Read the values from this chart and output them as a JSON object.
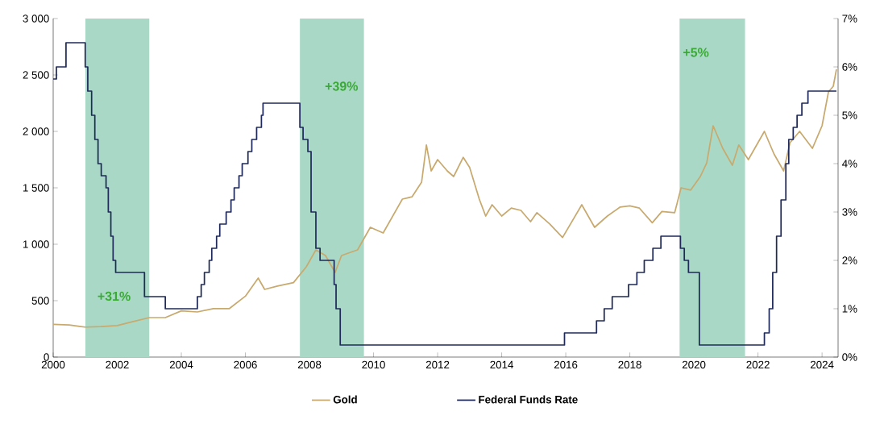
{
  "chart_data": {
    "type": "line",
    "xlim": [
      2000,
      2024.5
    ],
    "xticks": [
      2000,
      2002,
      2004,
      2006,
      2008,
      2010,
      2012,
      2014,
      2016,
      2018,
      2020,
      2022,
      2024
    ],
    "ylim": [
      0,
      3000
    ],
    "yticks": [
      0,
      500,
      {
        "value": 1000,
        "label": "1 000"
      },
      {
        "value": 1500,
        "label": "1 500"
      },
      {
        "value": 2000,
        "label": "2 000"
      },
      {
        "value": 2500,
        "label": "2 500"
      },
      {
        "value": 3000,
        "label": "3 000"
      }
    ],
    "y2lim": [
      0,
      7
    ],
    "y2ticks": [
      {
        "value": 0,
        "label": "0%"
      },
      {
        "value": 1,
        "label": "1%"
      },
      {
        "value": 2,
        "label": "2%"
      },
      {
        "value": 3,
        "label": "3%"
      },
      {
        "value": 4,
        "label": "4%"
      },
      {
        "value": 5,
        "label": "5%"
      },
      {
        "value": 6,
        "label": "6%"
      },
      {
        "value": 7,
        "label": "7%"
      }
    ],
    "legend": "bottom",
    "bands": [
      {
        "axis": "x",
        "from": 2001.0,
        "to": 2003.0,
        "color": "#a9d9c6"
      },
      {
        "axis": "x",
        "from": 2007.7,
        "to": 2009.7,
        "color": "#a9d9c6"
      },
      {
        "axis": "x",
        "from": 2019.55,
        "to": 2021.6,
        "color": "#a9d9c6"
      }
    ],
    "annotations": [
      "+31%",
      "+39%",
      "+5%"
    ],
    "series": [
      {
        "name": "Gold",
        "color": "#c8a96e",
        "x": [
          2000,
          2000.5,
          2001,
          2001.5,
          2002,
          2002.5,
          2003,
          2003.5,
          2004,
          2004.5,
          2005,
          2005.5,
          2006,
          2006.4,
          2006.6,
          2007,
          2007.5,
          2007.9,
          2008.2,
          2008.5,
          2008.8,
          2009,
          2009.5,
          2009.9,
          2010.3,
          2010.6,
          2010.9,
          2011.2,
          2011.5,
          2011.65,
          2011.8,
          2012.0,
          2012.3,
          2012.5,
          2012.8,
          2013.0,
          2013.3,
          2013.5,
          2013.7,
          2014,
          2014.3,
          2014.6,
          2014.9,
          2015.1,
          2015.5,
          2015.9,
          2016.5,
          2016.9,
          2017.3,
          2017.7,
          2018.0,
          2018.3,
          2018.7,
          2019.0,
          2019.4,
          2019.6,
          2019.9,
          2020.2,
          2020.4,
          2020.6,
          2020.9,
          2021.2,
          2021.4,
          2021.7,
          2022.2,
          2022.5,
          2022.8,
          2023.0,
          2023.3,
          2023.7,
          2024.0,
          2024.2,
          2024.35,
          2024.45
        ],
        "values": [
          290,
          285,
          265,
          270,
          280,
          315,
          350,
          350,
          410,
          400,
          430,
          430,
          540,
          700,
          600,
          630,
          660,
          800,
          950,
          900,
          750,
          900,
          950,
          1150,
          1100,
          1250,
          1400,
          1420,
          1550,
          1880,
          1650,
          1750,
          1650,
          1600,
          1770,
          1680,
          1400,
          1250,
          1350,
          1250,
          1320,
          1300,
          1200,
          1280,
          1180,
          1060,
          1350,
          1150,
          1250,
          1330,
          1340,
          1320,
          1190,
          1290,
          1280,
          1500,
          1480,
          1600,
          1720,
          2050,
          1850,
          1700,
          1880,
          1750,
          2000,
          1800,
          1650,
          1900,
          2000,
          1850,
          2050,
          2350,
          2400,
          2550
        ]
      },
      {
        "name": "Federal Funds Rate",
        "color": "#1f2a5a",
        "type": "step",
        "axis": "y2",
        "x": [
          2000.0,
          2000.1,
          2000.4,
          2001.0,
          2001.08,
          2001.2,
          2001.3,
          2001.4,
          2001.5,
          2001.65,
          2001.72,
          2001.8,
          2001.87,
          2001.95,
          2002.85,
          2003.5,
          2004.5,
          2004.62,
          2004.72,
          2004.87,
          2004.95,
          2005.1,
          2005.2,
          2005.4,
          2005.55,
          2005.65,
          2005.8,
          2005.9,
          2006.08,
          2006.2,
          2006.35,
          2006.5,
          2006.55,
          2007.7,
          2007.8,
          2007.95,
          2008.05,
          2008.2,
          2008.33,
          2008.77,
          2008.83,
          2008.96,
          2015.96,
          2016.96,
          2017.2,
          2017.45,
          2017.96,
          2018.22,
          2018.45,
          2018.72,
          2018.97,
          2019.58,
          2019.7,
          2019.83,
          2020.17,
          2022.2,
          2022.35,
          2022.46,
          2022.58,
          2022.72,
          2022.87,
          2022.96,
          2023.1,
          2023.22,
          2023.37,
          2023.56,
          2024.45
        ],
        "values": [
          5.75,
          6.0,
          6.5,
          6.0,
          5.5,
          5.0,
          4.5,
          4.0,
          3.75,
          3.5,
          3.0,
          2.5,
          2.0,
          1.75,
          1.25,
          1.0,
          1.25,
          1.5,
          1.75,
          2.0,
          2.25,
          2.5,
          2.75,
          3.0,
          3.25,
          3.5,
          3.75,
          4.0,
          4.25,
          4.5,
          4.75,
          5.0,
          5.25,
          4.75,
          4.5,
          4.25,
          3.0,
          2.25,
          2.0,
          1.5,
          1.0,
          0.25,
          0.5,
          0.75,
          1.0,
          1.25,
          1.5,
          1.75,
          2.0,
          2.25,
          2.5,
          2.25,
          2.0,
          1.75,
          0.25,
          0.5,
          1.0,
          1.75,
          2.5,
          3.25,
          4.0,
          4.5,
          4.75,
          5.0,
          5.25,
          5.5,
          5.5
        ]
      }
    ]
  }
}
